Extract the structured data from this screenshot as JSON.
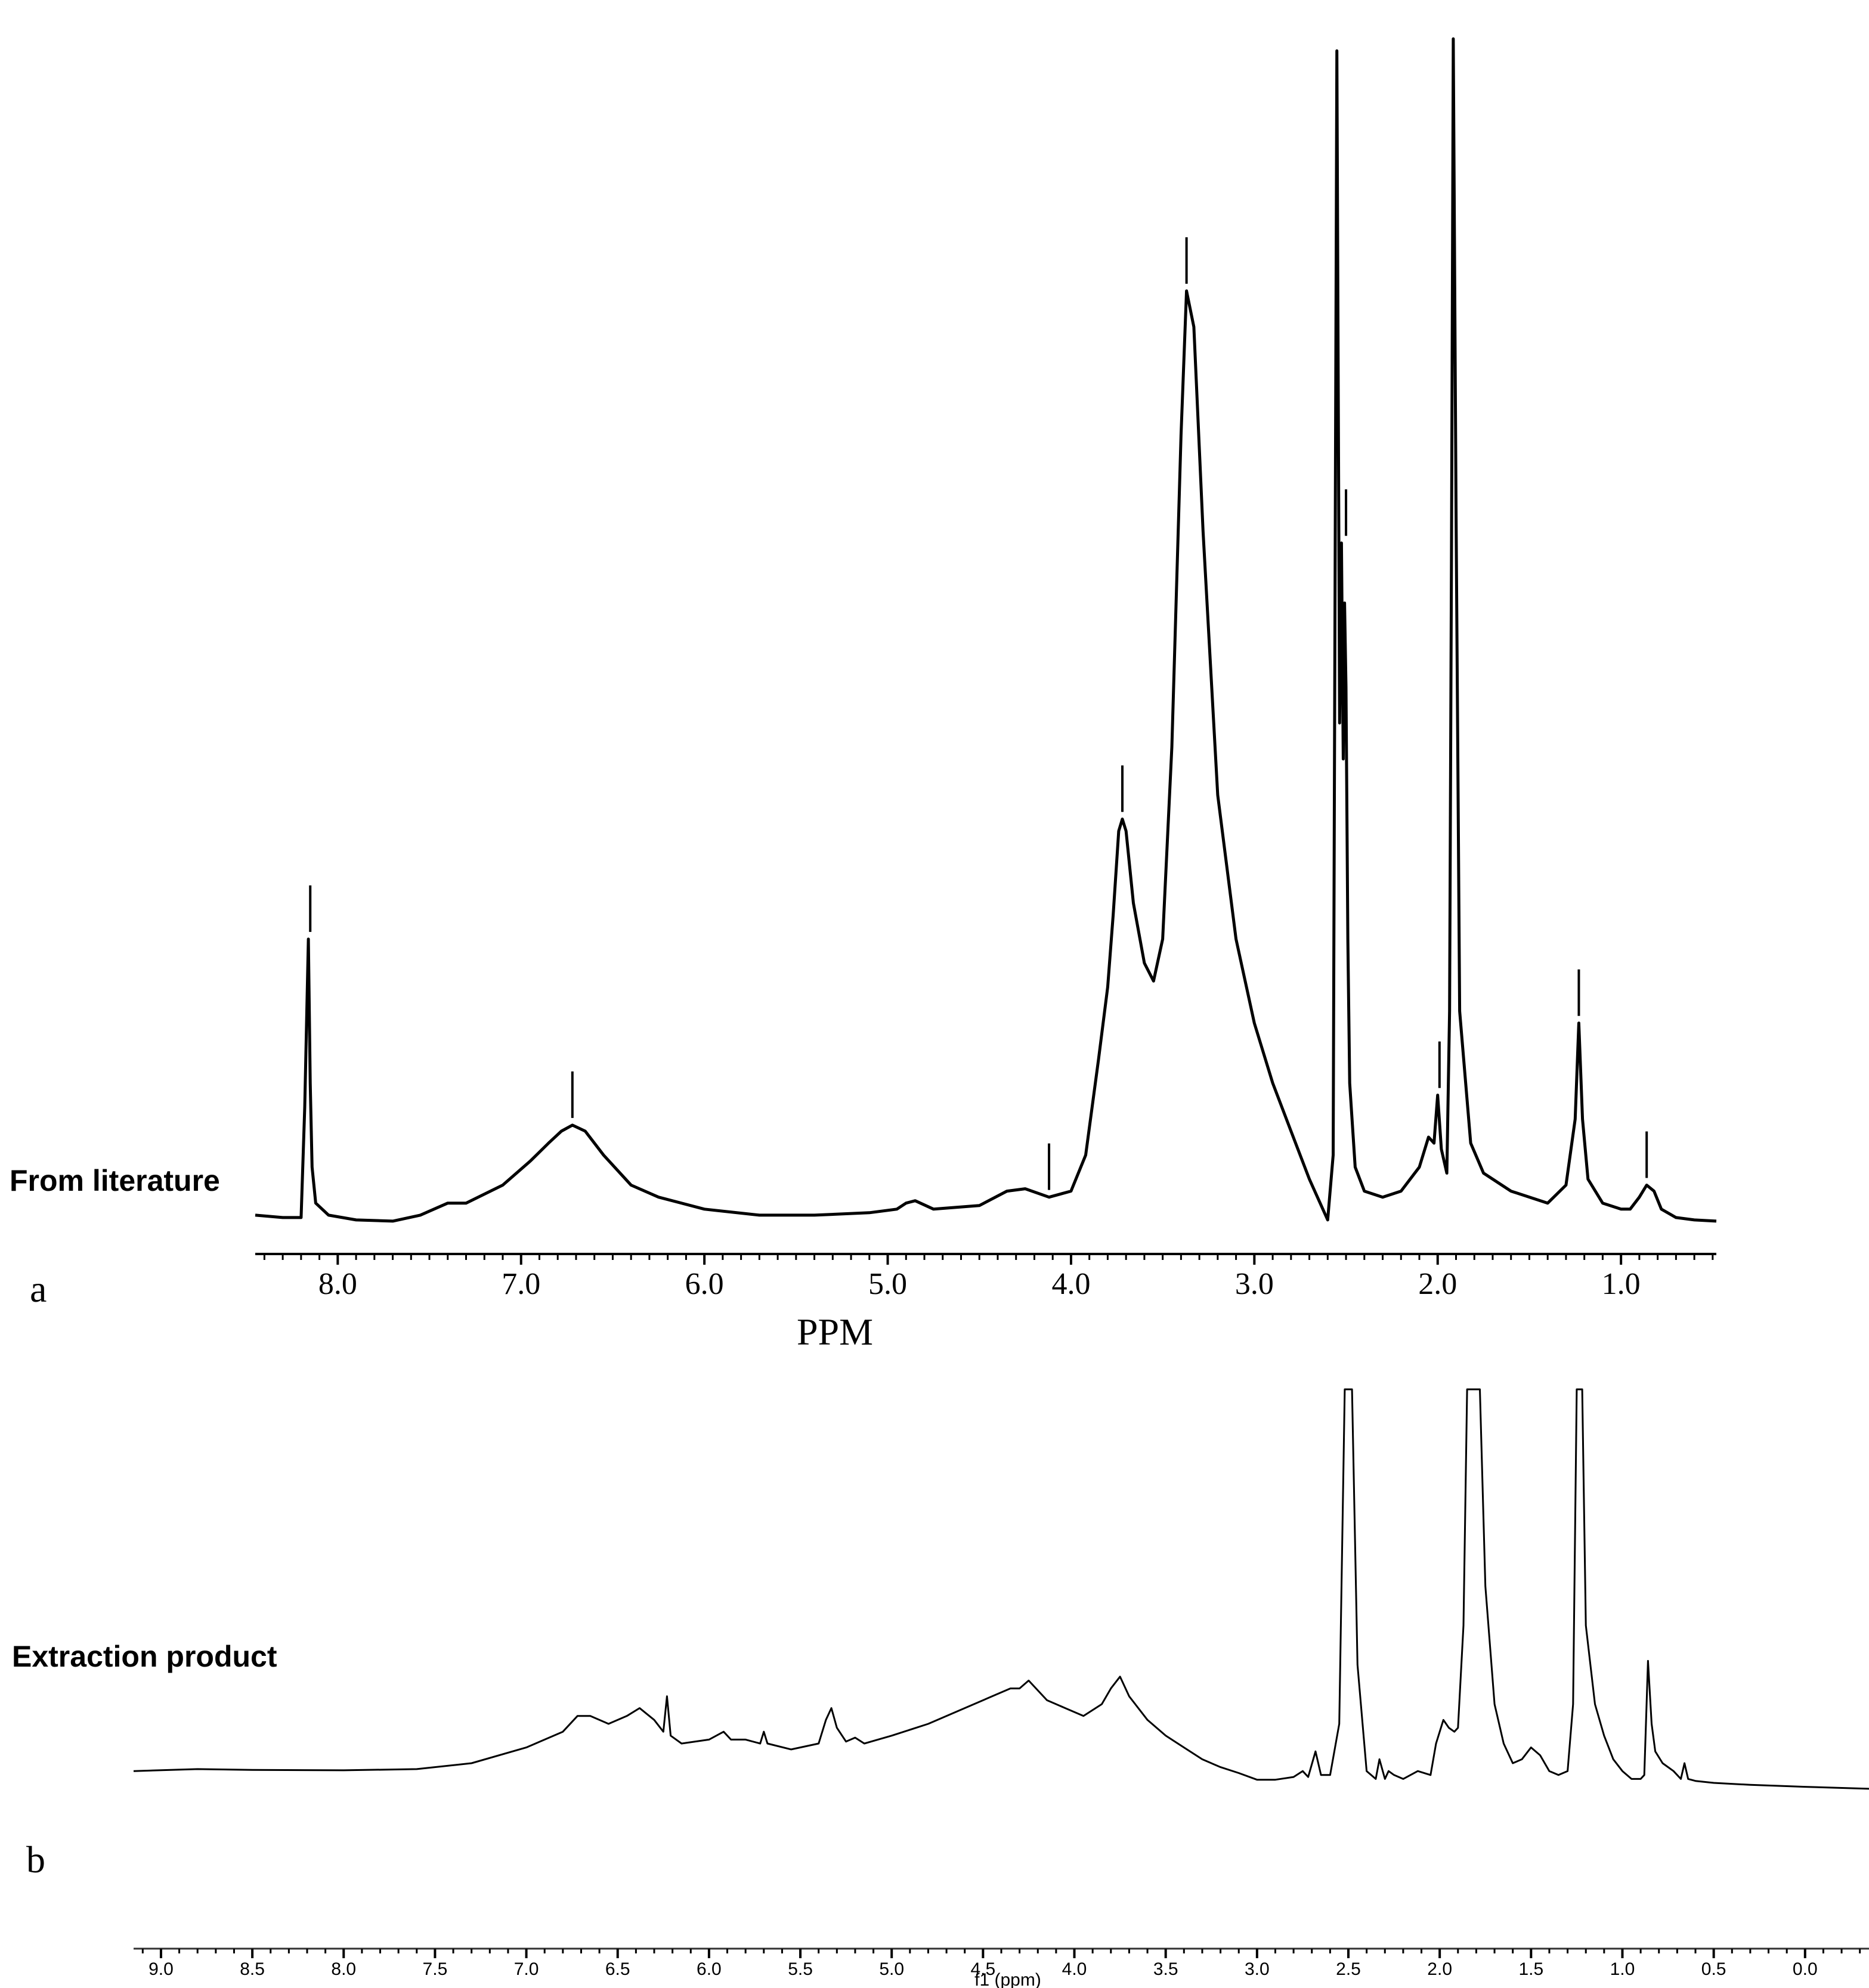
{
  "chart_data": [
    {
      "type": "line",
      "panel_letter": "a",
      "series_label": "From literature",
      "xlabel": "PPM",
      "x_reversed": true,
      "xlim": [
        8.45,
        0.48
      ],
      "ylim": [
        0,
        100
      ],
      "x_ticks": [
        8.0,
        7.0,
        6.0,
        5.0,
        4.0,
        3.0,
        2.0,
        1.0
      ],
      "x_tick_labels": [
        "8.0",
        "7.0",
        "6.0",
        "5.0",
        "4.0",
        "3.0",
        "2.0",
        "1.0"
      ],
      "series": [
        {
          "x": [
            8.45,
            8.3,
            8.2,
            8.18,
            8.16,
            8.15,
            8.14,
            8.12,
            8.05,
            7.9,
            7.7,
            7.55,
            7.4,
            7.3,
            7.1,
            6.95,
            6.85,
            6.78,
            6.72,
            6.65,
            6.55,
            6.4,
            6.25,
            6.0,
            5.7,
            5.4,
            5.1,
            4.95,
            4.9,
            4.85,
            4.75,
            4.5,
            4.35,
            4.25,
            4.12,
            4.0,
            3.92,
            3.85,
            3.8,
            3.77,
            3.74,
            3.72,
            3.7,
            3.66,
            3.6,
            3.55,
            3.5,
            3.45,
            3.4,
            3.37,
            3.33,
            3.28,
            3.2,
            3.1,
            3.0,
            2.9,
            2.8,
            2.7,
            2.6,
            2.57,
            2.55,
            2.535,
            2.525,
            2.515,
            2.508,
            2.5,
            2.49,
            2.48,
            2.45,
            2.4,
            2.3,
            2.2,
            2.1,
            2.05,
            2.02,
            2.0,
            1.98,
            1.95,
            1.935,
            1.925,
            1.915,
            1.9,
            1.88,
            1.82,
            1.75,
            1.6,
            1.4,
            1.3,
            1.25,
            1.23,
            1.21,
            1.18,
            1.1,
            1.0,
            0.95,
            0.9,
            0.86,
            0.82,
            0.78,
            0.7,
            0.6,
            0.48
          ],
          "y": [
            1.0,
            0.8,
            0.8,
            10.0,
            24.0,
            12.0,
            5.0,
            2.0,
            1.0,
            0.6,
            0.5,
            1.0,
            2.0,
            2.0,
            3.5,
            5.5,
            7.0,
            8.0,
            8.5,
            8.0,
            6.0,
            3.5,
            2.5,
            1.5,
            1.0,
            1.0,
            1.2,
            1.5,
            2.0,
            2.2,
            1.5,
            1.8,
            3.0,
            3.2,
            2.5,
            3.0,
            6.0,
            14.0,
            20.0,
            26.0,
            33.0,
            34.0,
            33.0,
            27.0,
            22.0,
            20.5,
            24.0,
            40.0,
            66.0,
            78.0,
            75.0,
            58.0,
            36.0,
            24.0,
            17.0,
            12.0,
            8.0,
            4.0,
            0.6,
            6.0,
            98.0,
            42.0,
            57.0,
            39.0,
            52.0,
            45.0,
            24.0,
            12.0,
            5.0,
            3.0,
            2.5,
            3.0,
            5.0,
            7.5,
            7.0,
            11.0,
            6.5,
            4.5,
            18.0,
            55.0,
            99.0,
            60.0,
            18.0,
            7.0,
            4.5,
            3.0,
            2.0,
            3.5,
            9.0,
            17.0,
            9.0,
            4.0,
            2.0,
            1.5,
            1.5,
            2.5,
            3.5,
            3.0,
            1.5,
            0.8,
            0.6,
            0.5
          ]
        }
      ],
      "peak_markers": [
        8.15,
        6.72,
        4.12,
        3.72,
        3.37,
        2.5,
        1.99,
        1.23,
        0.86
      ]
    },
    {
      "type": "line",
      "panel_letter": "b",
      "series_label": "Extraction product",
      "xlabel": "f1 (ppm)",
      "x_reversed": true,
      "xlim": [
        9.15,
        -0.35
      ],
      "ylim": [
        0,
        100
      ],
      "x_ticks": [
        9.0,
        8.5,
        8.0,
        7.5,
        7.0,
        6.5,
        6.0,
        5.5,
        5.0,
        4.5,
        4.0,
        3.5,
        3.0,
        2.5,
        2.0,
        1.5,
        1.0,
        0.5,
        0.0
      ],
      "x_tick_labels": [
        "9.0",
        "8.5",
        "8.0",
        "7.5",
        "7.0",
        "6.5",
        "6.0",
        "5.5",
        "5.0",
        "4.5",
        "4.0",
        "3.5",
        "3.0",
        "2.5",
        "2.0",
        "1.5",
        "1.0",
        "0.5",
        "0.0"
      ],
      "series": [
        {
          "x": [
            9.15,
            8.8,
            8.5,
            8.0,
            7.6,
            7.3,
            7.0,
            6.8,
            6.72,
            6.65,
            6.55,
            6.45,
            6.38,
            6.3,
            6.25,
            6.23,
            6.21,
            6.15,
            6.0,
            5.92,
            5.88,
            5.8,
            5.72,
            5.7,
            5.68,
            5.55,
            5.4,
            5.36,
            5.33,
            5.3,
            5.25,
            5.2,
            5.15,
            5.0,
            4.8,
            4.6,
            4.45,
            4.35,
            4.3,
            4.25,
            4.15,
            4.05,
            3.95,
            3.85,
            3.8,
            3.75,
            3.7,
            3.6,
            3.5,
            3.4,
            3.3,
            3.2,
            3.1,
            3.0,
            2.9,
            2.8,
            2.75,
            2.72,
            2.68,
            2.65,
            2.6,
            2.55,
            2.52,
            2.5,
            2.48,
            2.45,
            2.4,
            2.35,
            2.33,
            2.3,
            2.28,
            2.25,
            2.2,
            2.12,
            2.05,
            2.02,
            1.98,
            1.95,
            1.92,
            1.9,
            1.87,
            1.85,
            1.8,
            1.78,
            1.75,
            1.7,
            1.65,
            1.6,
            1.55,
            1.5,
            1.45,
            1.4,
            1.35,
            1.3,
            1.27,
            1.25,
            1.22,
            1.2,
            1.15,
            1.1,
            1.05,
            1.0,
            0.95,
            0.9,
            0.88,
            0.86,
            0.84,
            0.82,
            0.78,
            0.72,
            0.68,
            0.66,
            0.64,
            0.6,
            0.5,
            0.3,
            0.0,
            -0.35
          ],
          "y": [
            3.0,
            3.5,
            3.3,
            3.2,
            3.5,
            5.0,
            9.0,
            13.0,
            17.0,
            17.0,
            15.0,
            17.0,
            19.0,
            16.0,
            13.0,
            22.0,
            12.0,
            10.0,
            11.0,
            13.0,
            11.0,
            11.0,
            10.0,
            13.0,
            10.0,
            8.5,
            10.0,
            16.0,
            19.0,
            14.0,
            10.5,
            11.5,
            10.0,
            12.0,
            15.0,
            19.0,
            22.0,
            24.0,
            24.0,
            26.0,
            21.0,
            19.0,
            17.0,
            20.0,
            24.0,
            27.0,
            22.0,
            16.0,
            12.0,
            9.0,
            6.0,
            4.0,
            2.5,
            0.8,
            0.8,
            1.5,
            3.0,
            1.5,
            8.0,
            2.0,
            2.0,
            15.0,
            100.0,
            100.0,
            100.0,
            30.0,
            3.0,
            1.0,
            6.0,
            1.0,
            3.0,
            2.0,
            1.0,
            3.0,
            2.0,
            10.0,
            16.0,
            14.0,
            13.0,
            14.0,
            40.0,
            100.0,
            100.0,
            100.0,
            50.0,
            20.0,
            10.0,
            5.0,
            6.0,
            9.0,
            7.0,
            3.0,
            2.0,
            3.0,
            20.0,
            100.0,
            100.0,
            40.0,
            20.0,
            12.0,
            6.0,
            3.0,
            1.0,
            1.0,
            2.0,
            31.0,
            15.0,
            8.0,
            5.0,
            3.0,
            1.0,
            5.0,
            1.0,
            0.5,
            0.0,
            -0.5,
            -1.0,
            -1.5
          ]
        }
      ]
    }
  ]
}
